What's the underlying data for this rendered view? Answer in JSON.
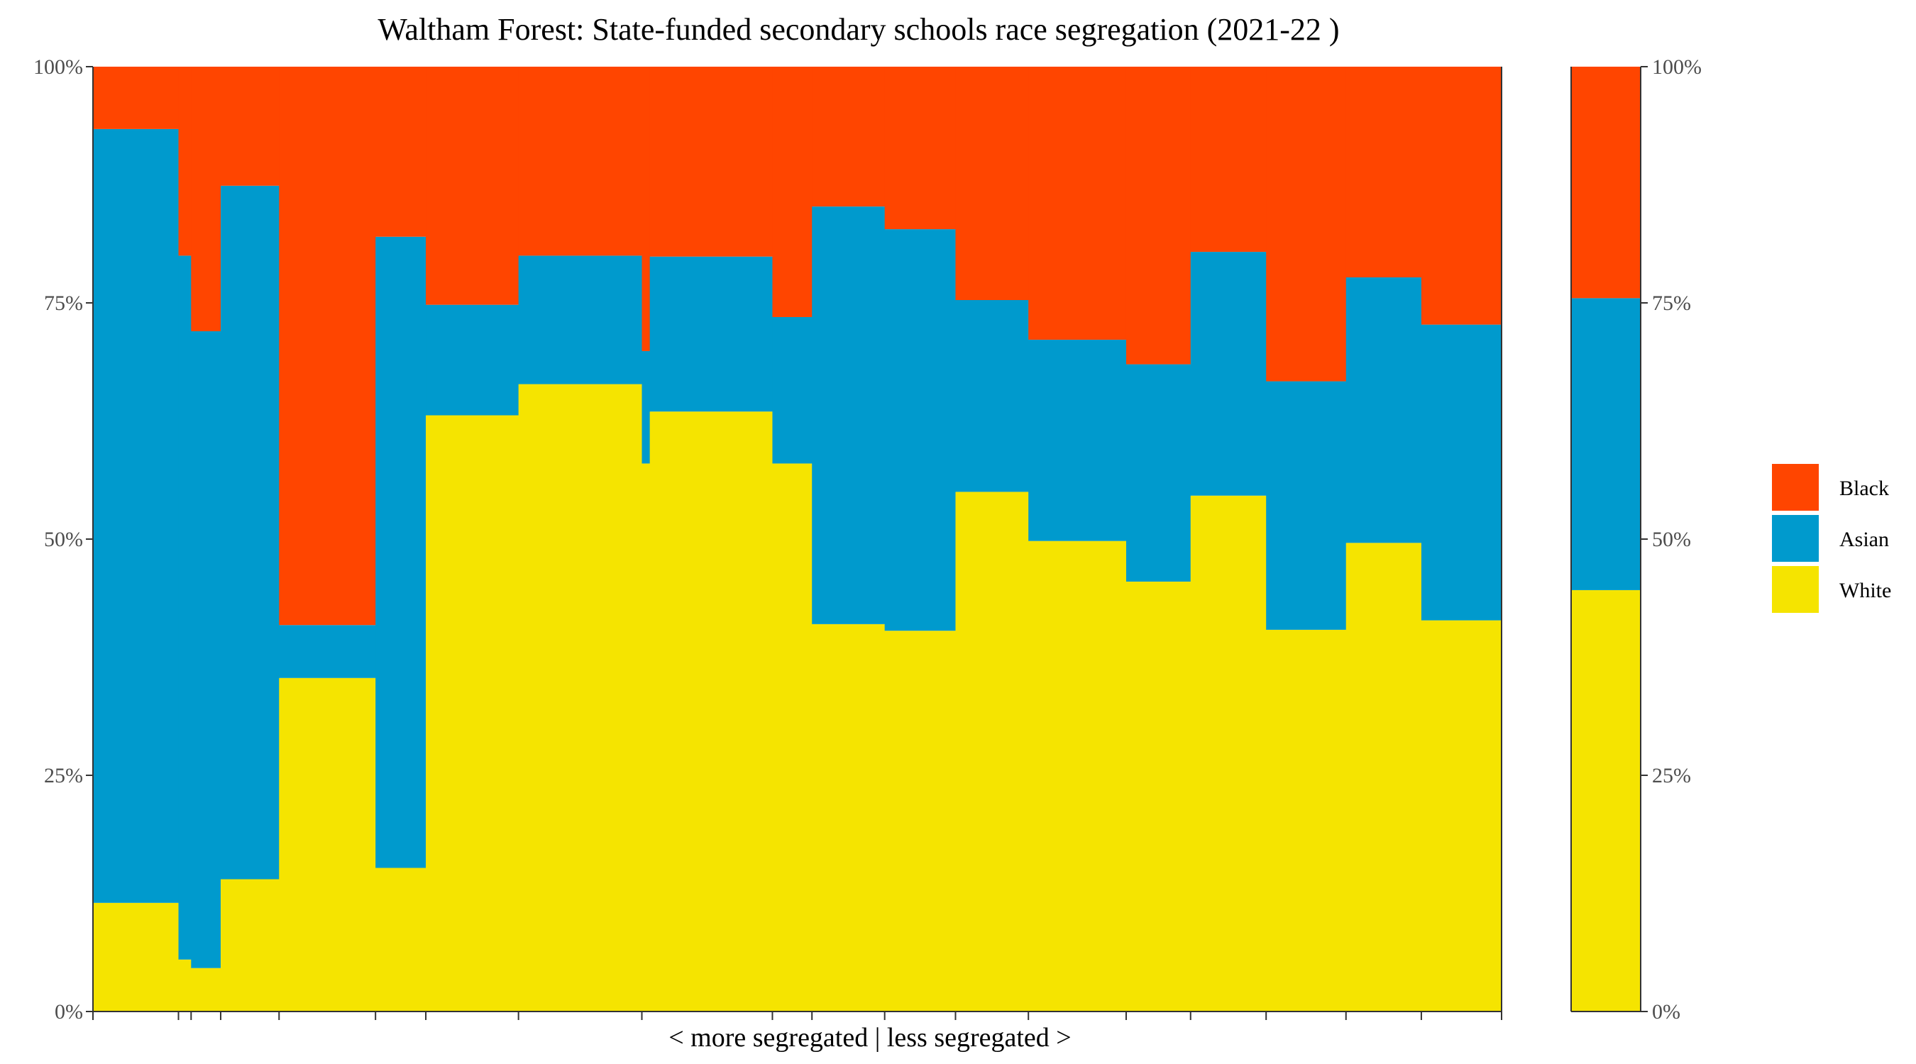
{
  "chart_data": {
    "type": "bar",
    "title": "Waltham Forest: State-funded secondary schools race segregation (2021-22 )",
    "xlabel": "< more segregated | less segregated >",
    "ylabel": "",
    "ylim": [
      0,
      100
    ],
    "y_ticks": [
      "0%",
      "25%",
      "50%",
      "75%",
      "100%"
    ],
    "stacking": "percent",
    "legend_position": "right",
    "legend": [
      "Black",
      "Asian",
      "White"
    ],
    "colors": {
      "Black": "#FF4500",
      "Asian": "#009ACD",
      "White": "#F5E400"
    },
    "schools": [
      {
        "width": 4.54,
        "white": 11.5,
        "asian": 81.9,
        "black": 6.6
      },
      {
        "width": 0.67,
        "white": 5.5,
        "asian": 74.5,
        "black": 20.0
      },
      {
        "width": 1.57,
        "white": 4.6,
        "asian": 67.4,
        "black": 28.0
      },
      {
        "width": 3.1,
        "white": 14.0,
        "asian": 73.4,
        "black": 12.6
      },
      {
        "width": 5.12,
        "white": 35.3,
        "asian": 5.6,
        "black": 59.1
      },
      {
        "width": 2.67,
        "white": 15.2,
        "asian": 66.8,
        "black": 18.0
      },
      {
        "width": 4.92,
        "white": 63.1,
        "asian": 11.7,
        "black": 25.2
      },
      {
        "width": 6.55,
        "white": 66.4,
        "asian": 13.6,
        "black": 20.0
      },
      {
        "width": 0.42,
        "white": 58.0,
        "asian": 11.9,
        "black": 30.1
      },
      {
        "width": 6.51,
        "white": 63.5,
        "asian": 16.4,
        "black": 20.1
      },
      {
        "width": 2.1,
        "white": 58.0,
        "asian": 15.5,
        "black": 26.5
      },
      {
        "width": 3.86,
        "white": 41.0,
        "asian": 44.2,
        "black": 14.8
      },
      {
        "width": 3.76,
        "white": 40.3,
        "asian": 42.5,
        "black": 17.2
      },
      {
        "width": 3.87,
        "white": 55.0,
        "asian": 20.3,
        "black": 24.7
      },
      {
        "width": 5.19,
        "white": 49.8,
        "asian": 21.3,
        "black": 28.9
      },
      {
        "width": 3.42,
        "white": 45.5,
        "asian": 23.0,
        "black": 31.5
      },
      {
        "width": 4.01,
        "white": 54.6,
        "asian": 25.8,
        "black": 19.6
      },
      {
        "width": 4.24,
        "white": 40.4,
        "asian": 26.3,
        "black": 33.3
      },
      {
        "width": 4.0,
        "white": 49.6,
        "asian": 28.1,
        "black": 22.3
      },
      {
        "width": 4.26,
        "white": 41.4,
        "asian": 31.3,
        "black": 27.3
      }
    ],
    "total": {
      "white": 44.6,
      "asian": 30.9,
      "black": 24.5
    }
  }
}
